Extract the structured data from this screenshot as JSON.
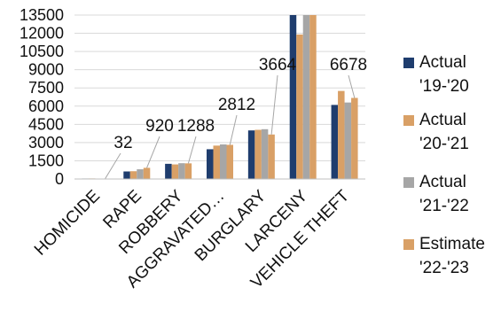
{
  "chart_data": {
    "type": "bar",
    "categories": [
      "HOMICIDE",
      "RAPE",
      "ROBBERY",
      "AGGRAVATED…",
      "BURGLARY",
      "LARCENY",
      "VEHICLE THEFT"
    ],
    "series": [
      {
        "name": "Actual '19-'20",
        "color": "#1f3d6e",
        "values": [
          40,
          620,
          1250,
          2450,
          4000,
          13500,
          6100
        ]
      },
      {
        "name": "Actual '20-'21",
        "color": "#d9a066",
        "values": [
          45,
          640,
          1200,
          2750,
          4050,
          11900,
          7250
        ]
      },
      {
        "name": "Actual '21-'22",
        "color": "#a6a6a6",
        "values": [
          30,
          800,
          1300,
          2850,
          4100,
          13500,
          6300
        ]
      },
      {
        "name": "Estimate '22-'23",
        "color": "#d9a066",
        "values": [
          32,
          920,
          1288,
          2812,
          3664,
          13500,
          6678
        ]
      }
    ],
    "data_labels": [
      {
        "category": "HOMICIDE",
        "text": "32"
      },
      {
        "category": "RAPE",
        "text": "920"
      },
      {
        "category": "ROBBERY",
        "text": "1288"
      },
      {
        "category": "AGGRAVATED…",
        "text": "2812"
      },
      {
        "category": "BURGLARY",
        "text": "3664"
      },
      {
        "category": "VEHICLE THEFT",
        "text": "6678"
      }
    ],
    "yticks": [
      "0",
      "1500",
      "3000",
      "4500",
      "6000",
      "7500",
      "9000",
      "10500",
      "12000",
      "13500"
    ],
    "ylim": [
      0,
      13500
    ],
    "legend": [
      {
        "line1": "Actual",
        "line2": "'19-'20",
        "color": "#1f3d6e"
      },
      {
        "line1": "Actual",
        "line2": "'20-'21",
        "color": "#d9a066"
      },
      {
        "line1": "Actual",
        "line2": "'21-'22",
        "color": "#a6a6a6"
      },
      {
        "line1": "Estimate",
        "line2": "'22-'23",
        "color": "#d9a066"
      }
    ],
    "legend_position": "right",
    "grid": true
  }
}
